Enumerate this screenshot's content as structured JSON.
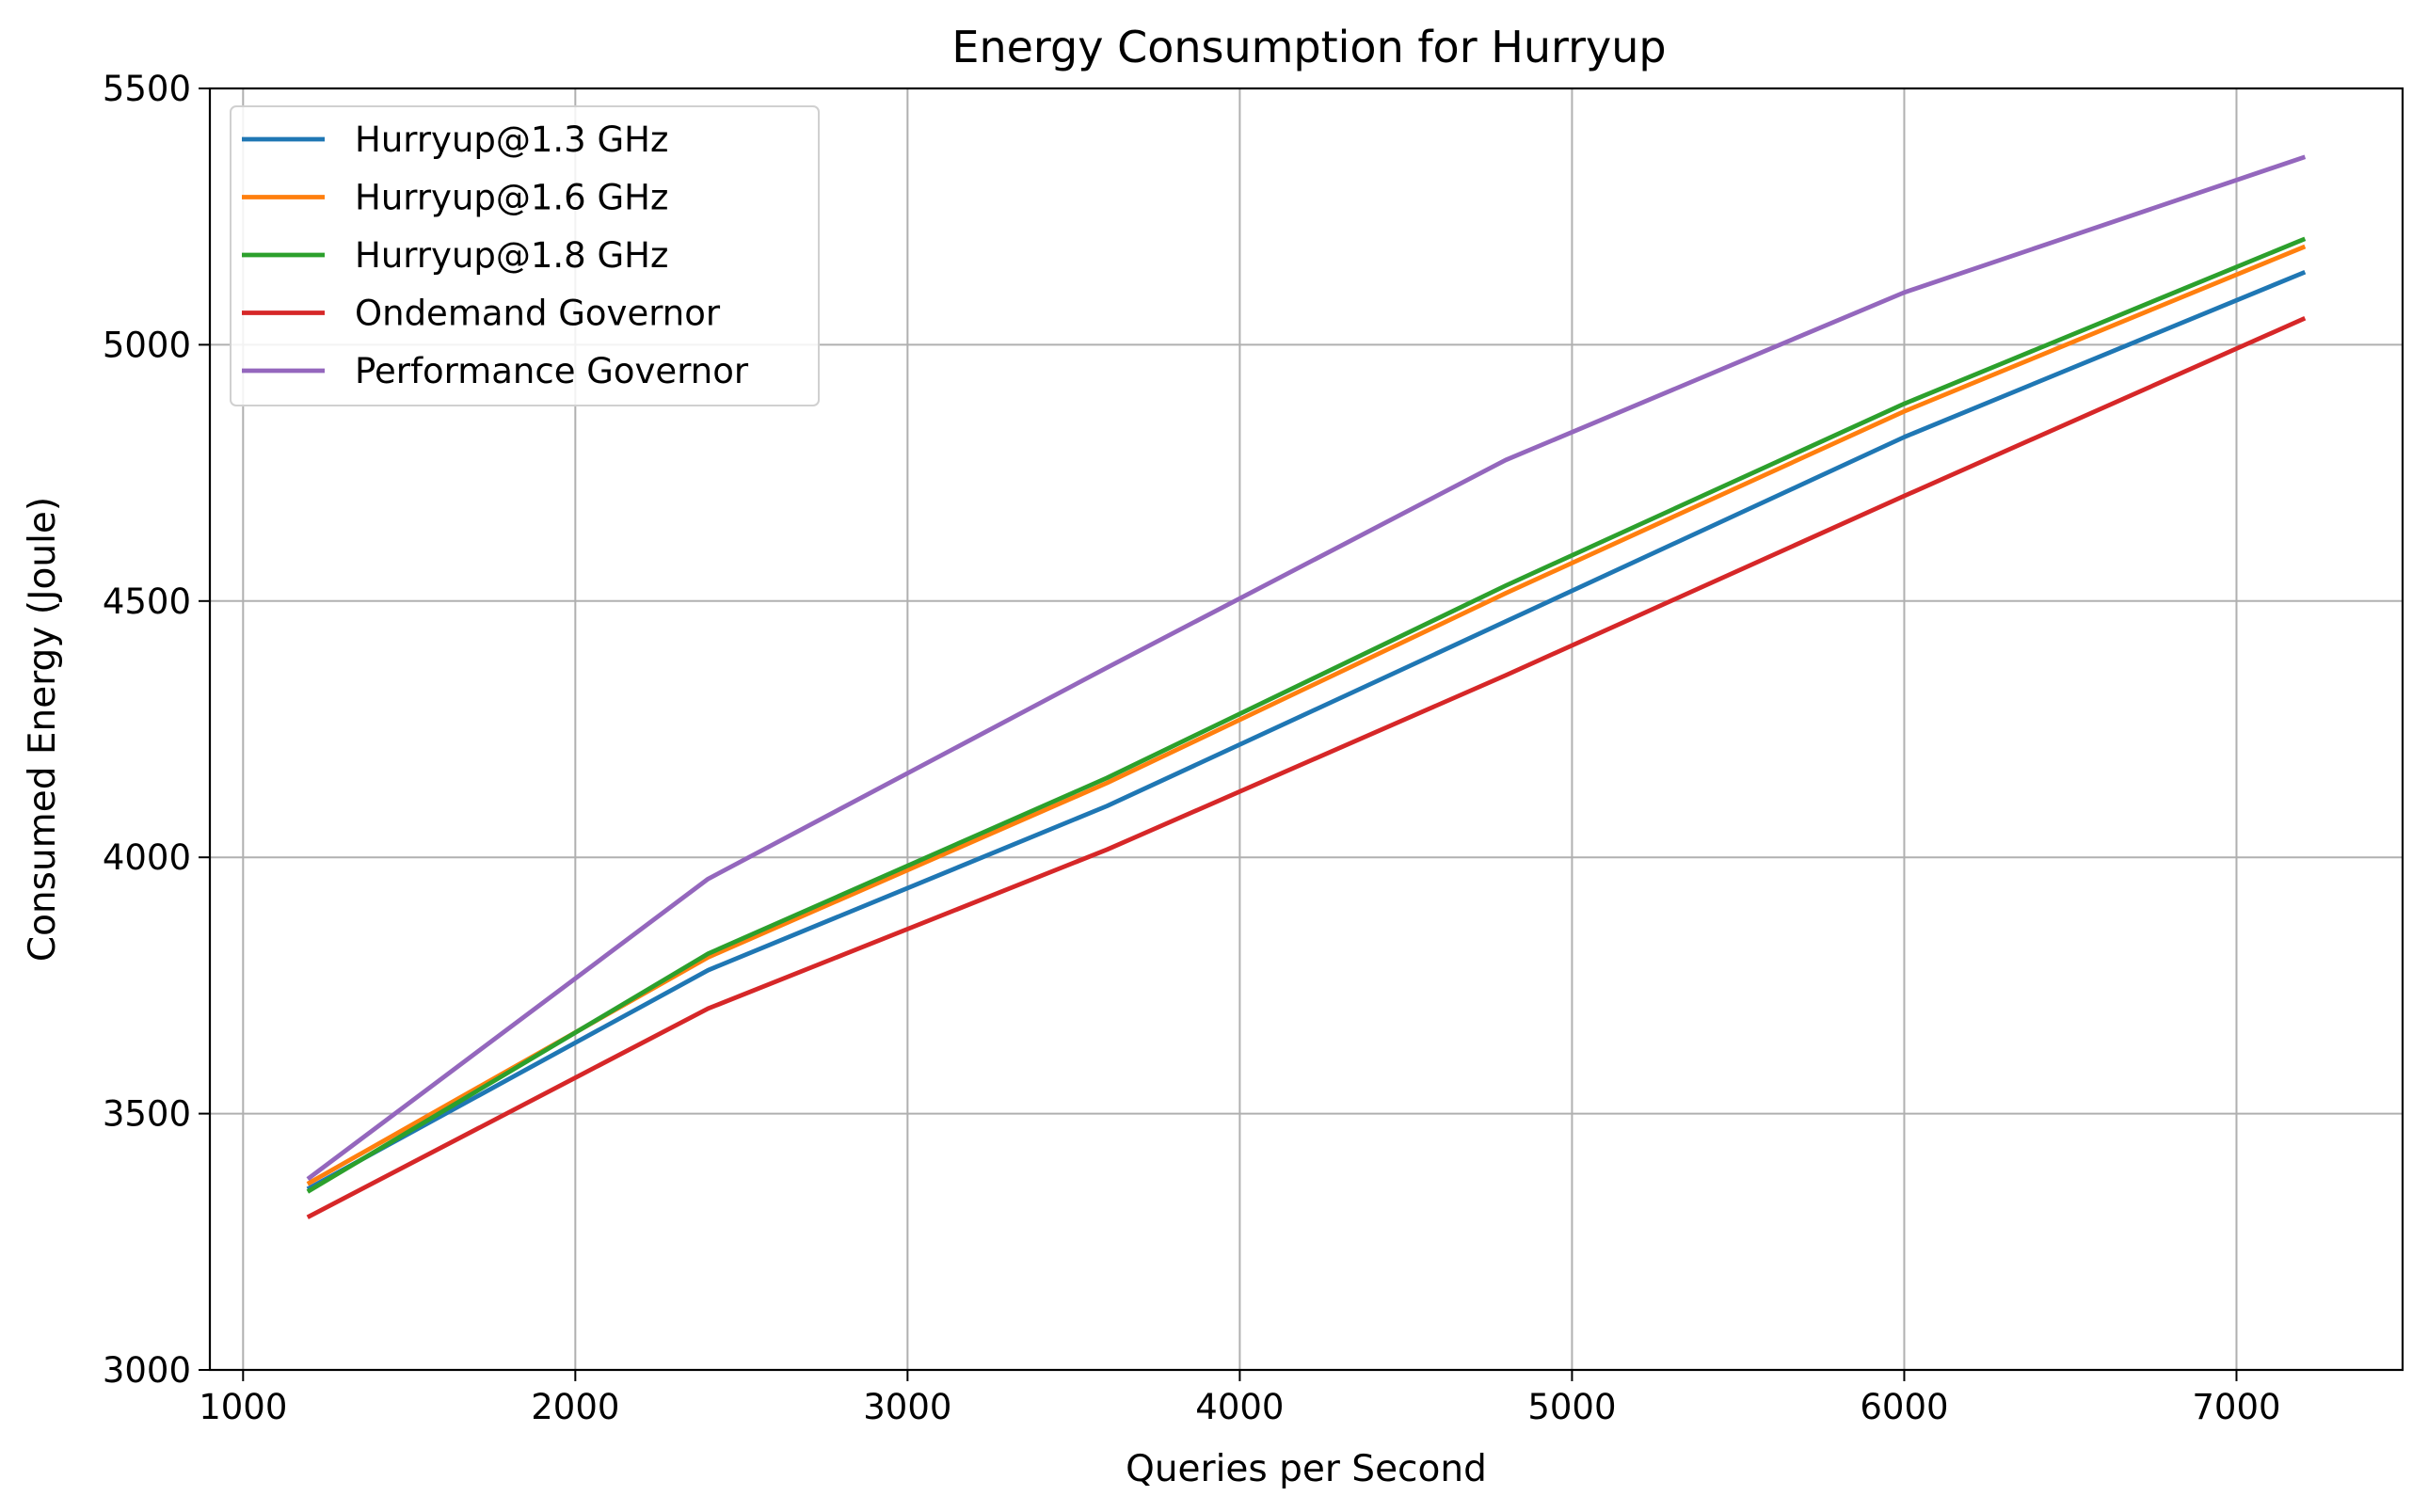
{
  "chart_data": {
    "type": "line",
    "title": "Energy Consumption for Hurryup",
    "xlabel": "Queries per Second",
    "ylabel": "Consumed Energy (Joule)",
    "xlim": [
      900,
      7500
    ],
    "ylim": [
      3000,
      5500
    ],
    "xticks": [
      1000,
      2000,
      3000,
      4000,
      5000,
      6000,
      7000
    ],
    "yticks": [
      3000,
      3500,
      4000,
      4500,
      5000,
      5500
    ],
    "grid": true,
    "legend_position": "top-left",
    "x": [
      1200,
      2400,
      3600,
      4800,
      6000,
      7200
    ],
    "series": [
      {
        "name": "Hurryup@1.3 GHz",
        "color": "#1f77b4",
        "values": [
          3355,
          3780,
          4100,
          4460,
          4820,
          5140
        ]
      },
      {
        "name": "Hurryup@1.6 GHz",
        "color": "#ff7f0e",
        "values": [
          3365,
          3805,
          4145,
          4515,
          4870,
          5190
        ]
      },
      {
        "name": "Hurryup@1.8 GHz",
        "color": "#2ca02c",
        "values": [
          3350,
          3812,
          4155,
          4530,
          4885,
          5205
        ]
      },
      {
        "name": "Ondemand Governor",
        "color": "#d62728",
        "values": [
          3300,
          3705,
          4015,
          4355,
          4705,
          5050
        ]
      },
      {
        "name": "Performance Governor",
        "color": "#9467bd",
        "values": [
          3375,
          3958,
          4370,
          4775,
          5102,
          5365
        ]
      }
    ]
  }
}
